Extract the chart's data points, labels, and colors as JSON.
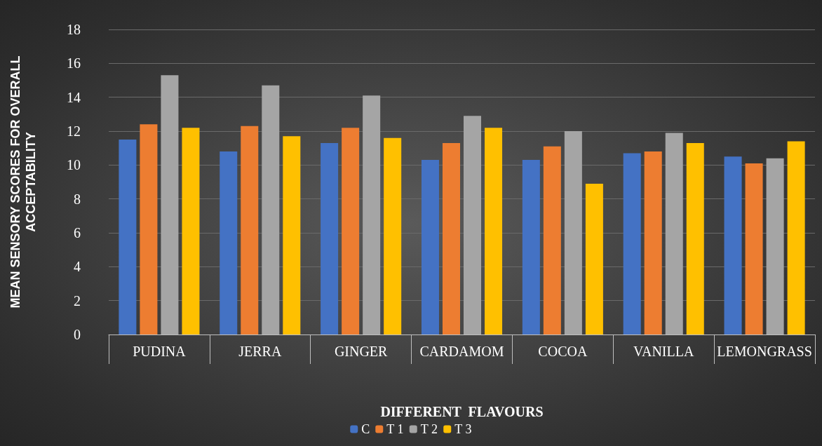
{
  "chart_data": {
    "type": "bar",
    "xlabel": "DIFFERENT  FLAVOURS",
    "ylabel": "MEAN SENSORY SCORES FOR OVERALL\nACCEPTABILITY",
    "categories": [
      "PUDINA",
      "JERRA",
      "GINGER",
      "CARDAMOM",
      "COCOA",
      "VANILLA",
      "LEMONGRASS"
    ],
    "series": [
      {
        "name": "C",
        "color": "#4472c4",
        "values": [
          11.5,
          10.8,
          11.3,
          10.3,
          10.3,
          10.7,
          10.5
        ]
      },
      {
        "name": "T 1",
        "color": "#ed7d31",
        "values": [
          12.4,
          12.3,
          12.2,
          11.3,
          11.1,
          10.8,
          10.1
        ]
      },
      {
        "name": "T 2",
        "color": "#a5a5a5",
        "values": [
          15.3,
          14.7,
          14.1,
          12.9,
          12.0,
          11.9,
          10.4
        ]
      },
      {
        "name": "T 3",
        "color": "#ffc000",
        "values": [
          12.2,
          11.7,
          11.6,
          12.2,
          8.9,
          11.3,
          11.4
        ]
      }
    ],
    "ylim": [
      0,
      18
    ],
    "yticks": [
      0,
      2,
      4,
      6,
      8,
      10,
      12,
      14,
      16,
      18
    ],
    "grid": "y",
    "legend": "bottom"
  }
}
